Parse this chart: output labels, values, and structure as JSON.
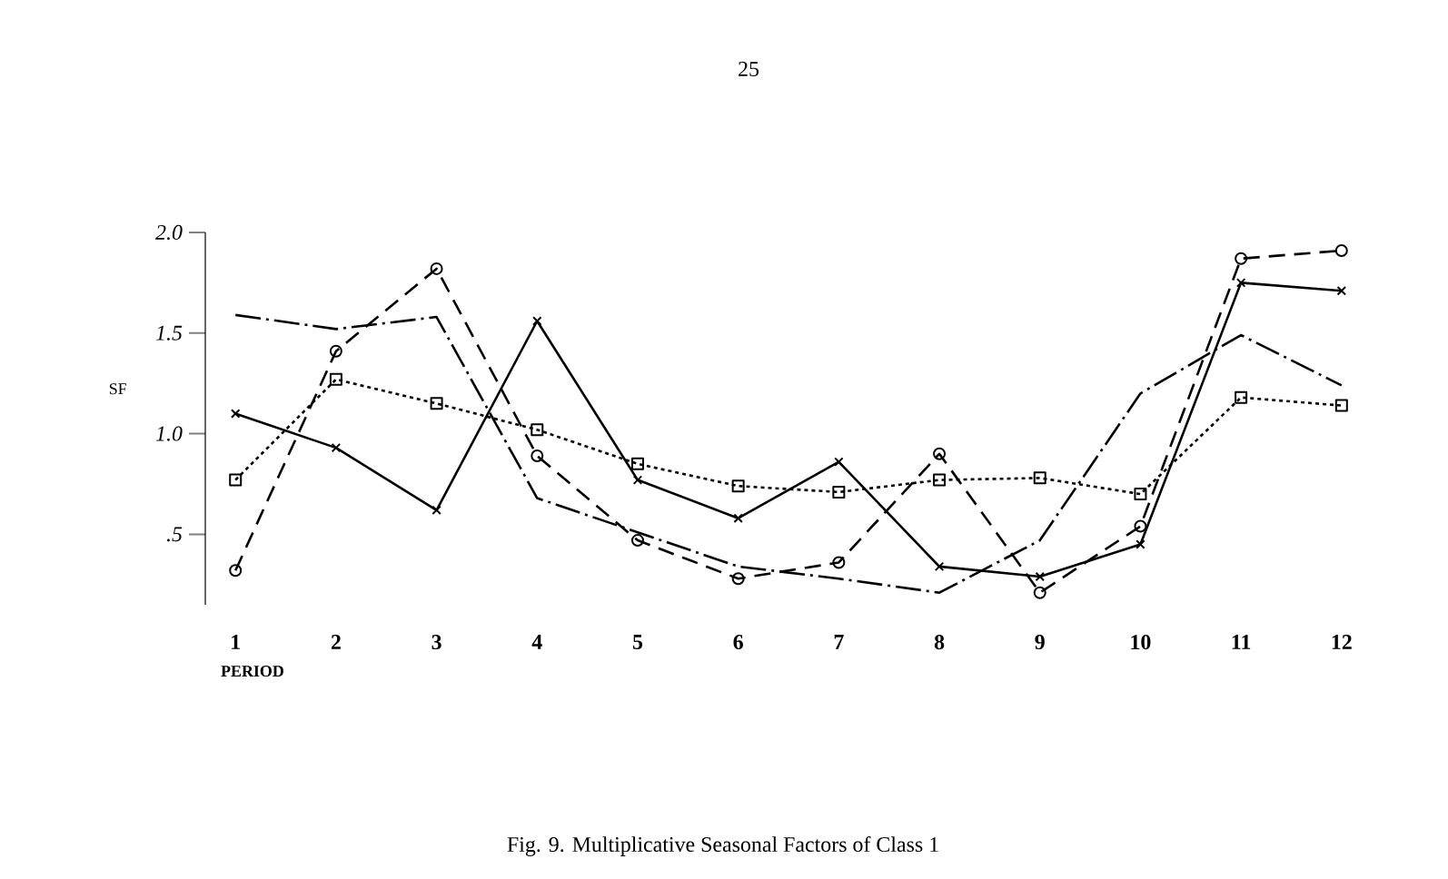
{
  "chart_data": {
    "type": "line",
    "title": "Fig. 9. Multiplicative Seasonal Factors of Class 1",
    "xlabel": "PERIOD",
    "ylabel": "SF",
    "annotations": [
      "25"
    ],
    "categories": [
      "1",
      "2",
      "3",
      "4",
      "5",
      "6",
      "7",
      "8",
      "9",
      "10",
      "11",
      "12"
    ],
    "ylim": [
      0.15,
      2.0
    ],
    "yticks": [
      {
        "value": 0.5,
        "label": ".5"
      },
      {
        "value": 1.0,
        "label": "1.0"
      },
      {
        "value": 1.5,
        "label": "1.5"
      },
      {
        "value": 2.0,
        "label": "2.0"
      }
    ],
    "series": [
      {
        "color": "#000000",
        "marker": "cross",
        "line_style": "solid",
        "values": [
          1.1,
          0.93,
          0.62,
          1.56,
          0.77,
          0.58,
          0.86,
          0.34,
          0.29,
          0.45,
          1.75,
          1.71
        ]
      },
      {
        "color": "#000000",
        "marker": "none",
        "line_style": "dashdot",
        "values": [
          1.59,
          1.52,
          1.58,
          0.68,
          0.51,
          0.34,
          0.28,
          0.21,
          0.47,
          1.2,
          1.49,
          1.24
        ]
      },
      {
        "color": "#000000",
        "marker": "circle",
        "line_style": "dashed",
        "values": [
          0.32,
          1.41,
          1.82,
          0.89,
          0.47,
          0.28,
          0.36,
          0.9,
          0.21,
          0.54,
          1.87,
          1.91
        ]
      },
      {
        "color": "#000000",
        "marker": "square",
        "line_style": "dotted",
        "values": [
          0.77,
          1.27,
          1.15,
          1.02,
          0.85,
          0.74,
          0.71,
          0.77,
          0.78,
          0.7,
          1.18,
          1.14
        ]
      }
    ]
  }
}
